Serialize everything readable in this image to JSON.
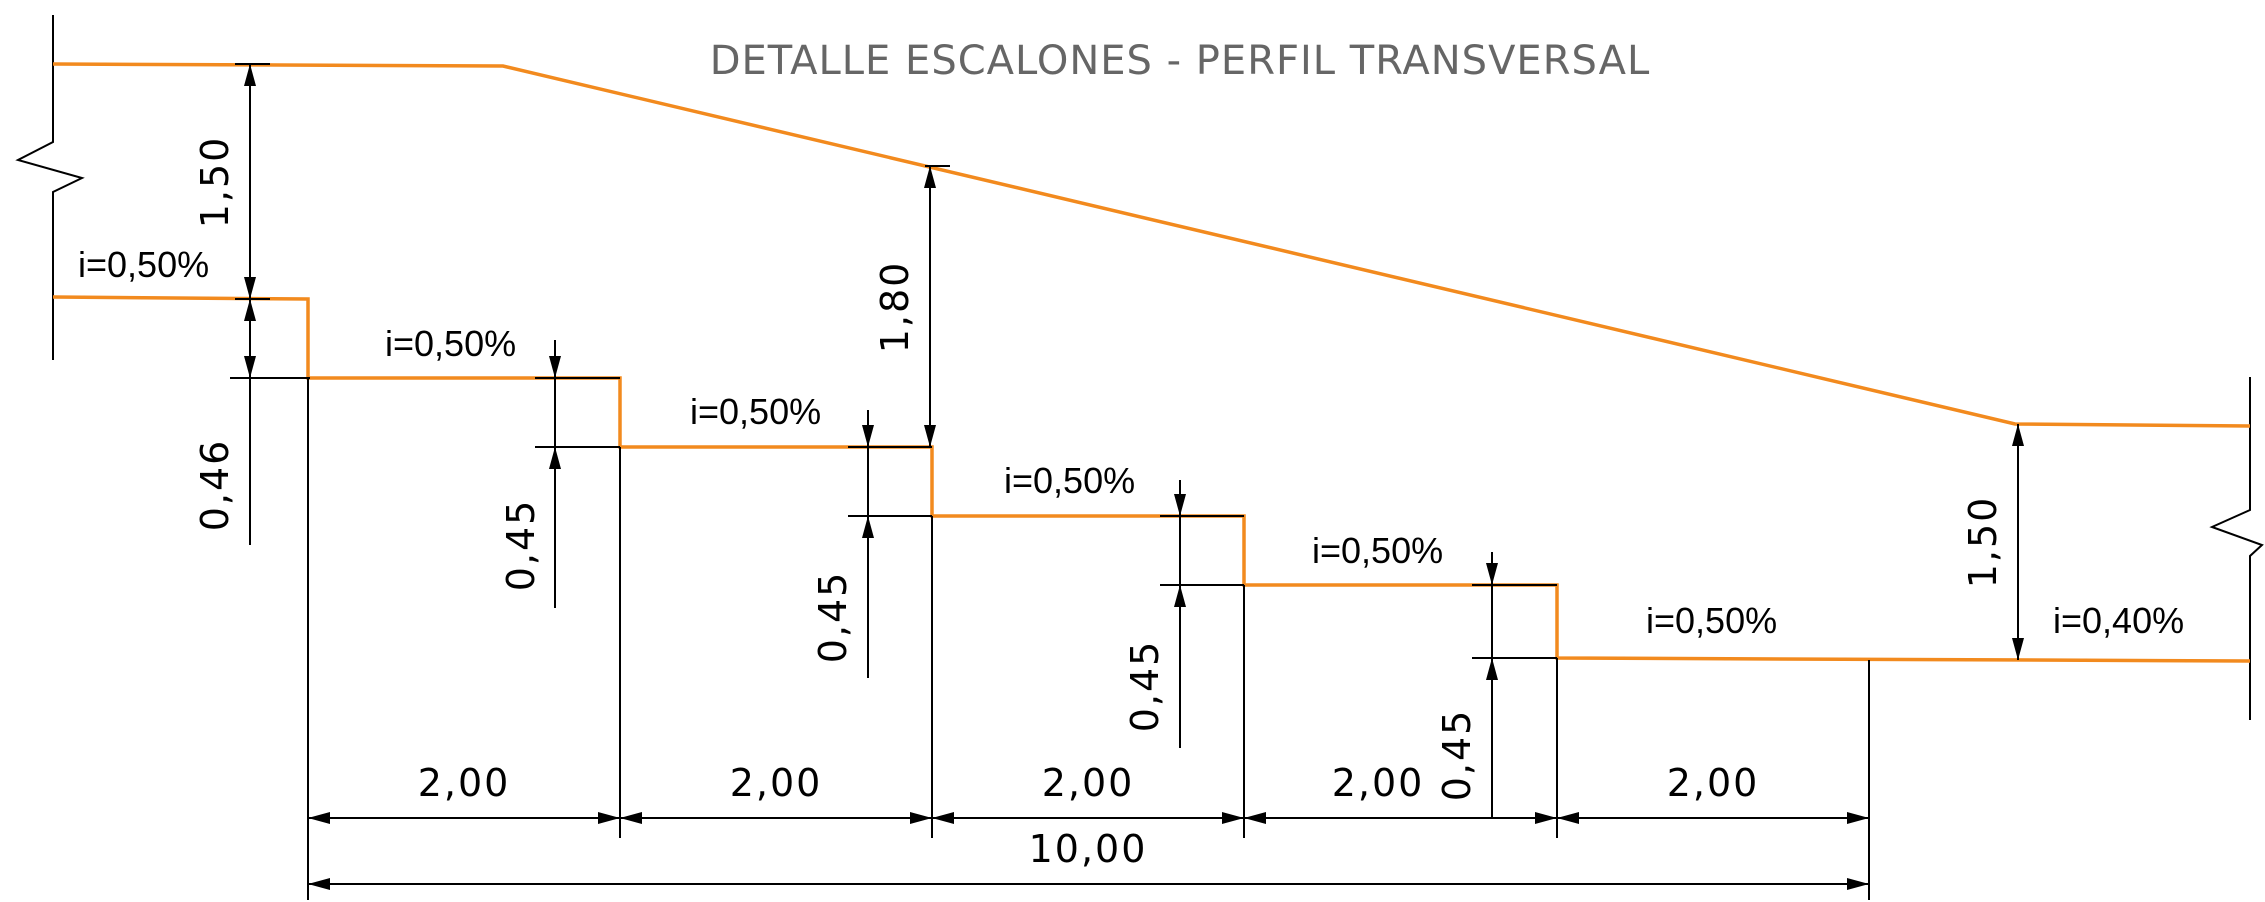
{
  "title": "DETALLE ESCALONES - PERFIL TRANSVERSAL",
  "colors": {
    "profile": "#f28a1e",
    "dimension": "#000000",
    "title": "#666666"
  },
  "slopes": [
    {
      "id": "top-left",
      "label": "i=0,50%"
    },
    {
      "id": "step-1",
      "label": "i=0,50%"
    },
    {
      "id": "step-2",
      "label": "i=0,50%"
    },
    {
      "id": "step-3",
      "label": "i=0,50%"
    },
    {
      "id": "step-4",
      "label": "i=0,50%"
    },
    {
      "id": "step-5",
      "label": "i=0,50%"
    },
    {
      "id": "right",
      "label": "i=0,40%"
    }
  ],
  "vertical_dimensions": [
    {
      "id": "left-cover",
      "label": "1,50"
    },
    {
      "id": "first-drop",
      "label": "0,46"
    },
    {
      "id": "riser-1",
      "label": "0,45"
    },
    {
      "id": "center-cover",
      "label": "1,80"
    },
    {
      "id": "riser-2",
      "label": "0,45"
    },
    {
      "id": "riser-3",
      "label": "0,45"
    },
    {
      "id": "riser-4",
      "label": "0,45"
    },
    {
      "id": "right-cover",
      "label": "1,50"
    }
  ],
  "horizontal_dimensions": {
    "treads": [
      "2,00",
      "2,00",
      "2,00",
      "2,00",
      "2,00"
    ],
    "total": "10,00"
  }
}
